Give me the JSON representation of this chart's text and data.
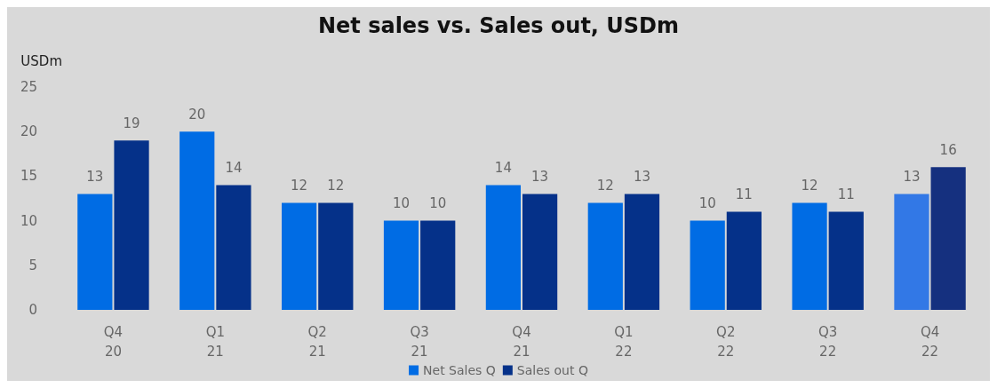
{
  "chart_data": {
    "type": "bar",
    "title": "Net sales vs. Sales out, USDm",
    "ylabel": "USDm",
    "categories": [
      "Q4\n20",
      "Q1\n21",
      "Q2\n21",
      "Q3\n21",
      "Q4\n21",
      "Q1\n22",
      "Q2\n22",
      "Q3\n22",
      "Q4\n22"
    ],
    "series": [
      {
        "name": "Net Sales Q",
        "color": "#006ce4",
        "colors": [
          "#006ce4",
          "#006ce4",
          "#006ce4",
          "#006ce4",
          "#006ce4",
          "#006ce4",
          "#006ce4",
          "#006ce4",
          "#3278e6"
        ],
        "values": [
          13,
          20,
          12,
          10,
          14,
          12,
          10,
          12,
          13
        ]
      },
      {
        "name": "Sales out Q",
        "color": "#053189",
        "colors": [
          "#053189",
          "#053189",
          "#053189",
          "#053189",
          "#053189",
          "#053189",
          "#053189",
          "#053189",
          "#15307f"
        ],
        "values": [
          19,
          14,
          12,
          10,
          13,
          13,
          11,
          11,
          16
        ]
      }
    ],
    "ylim": [
      0,
      25
    ],
    "yticks": [
      0,
      5,
      10,
      15,
      20,
      25
    ],
    "grid": false,
    "legend": "bottom",
    "data_labels": true
  }
}
